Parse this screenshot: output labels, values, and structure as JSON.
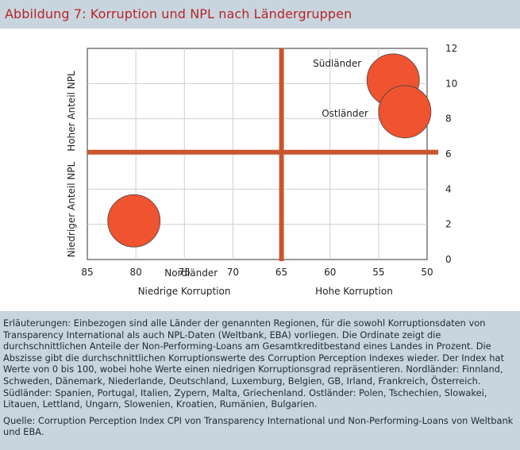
{
  "title": "Abbildung 7: Korruption und NPL nach Ländergruppen",
  "chart_data": {
    "type": "bubble",
    "x": {
      "ticks": [
        85,
        80,
        75,
        70,
        65,
        60,
        55,
        50
      ],
      "range": [
        85,
        50
      ],
      "reversed": true,
      "label_left": "Niedrige Korruption",
      "label_right": "Hohe Korruption"
    },
    "y": {
      "ticks": [
        0,
        2,
        4,
        6,
        8,
        10,
        12
      ],
      "range": [
        0,
        12
      ],
      "position": "right",
      "label_top": "Hoher Anteil NPL",
      "label_bottom": "Niedriger Anteil NPL"
    },
    "reference_lines": {
      "x": 65,
      "y": 6.1
    },
    "colors": {
      "bubble": "#f0532f",
      "reference": "#c9552f",
      "title": "#b4262c"
    },
    "series": [
      {
        "name": "Nordländer",
        "x": 80.2,
        "y": 2.2
      },
      {
        "name": "Südländer",
        "x": 53.5,
        "y": 10.2
      },
      {
        "name": "Ostländer",
        "x": 52.3,
        "y": 8.4
      }
    ]
  },
  "notes": {
    "explanation": "Erläuterungen: Einbezogen sind alle Länder der genannten Regionen, für die sowohl Korruptionsdaten von Transparency International als auch NPL-Daten (Weltbank, EBA) vorliegen. Die Ordinate zeigt die durchschnittlichen Anteile der Non-Performing-Loans am Gesamtkreditbestand eines Landes in Prozent. Die Abszisse gibt die durchschnittlichen Korruptionswerte des Corruption Perception Indexes wieder. Der Index hat Werte von 0 bis 100, wobei hohe Werte einen niedrigen Korruptionsgrad repräsentieren. Nordländer: Finnland, Schweden, Dänemark, Niederlande, Deutschland, Luxemburg, Belgien, GB, Irland, Frankreich, Österreich. Südländer: Spanien, Portugal, Italien, Zypern, Malta, Griechenland. Ostländer: Polen, Tschechien, Slowakei, Litauen, Lettland, Ungarn, Slowenien, Kroatien, Rumänien, Bulgarien.",
    "source": "Quelle: Corruption Perception Index CPI von Transparency International und Non-Performing-Loans von Weltbank und EBA."
  }
}
